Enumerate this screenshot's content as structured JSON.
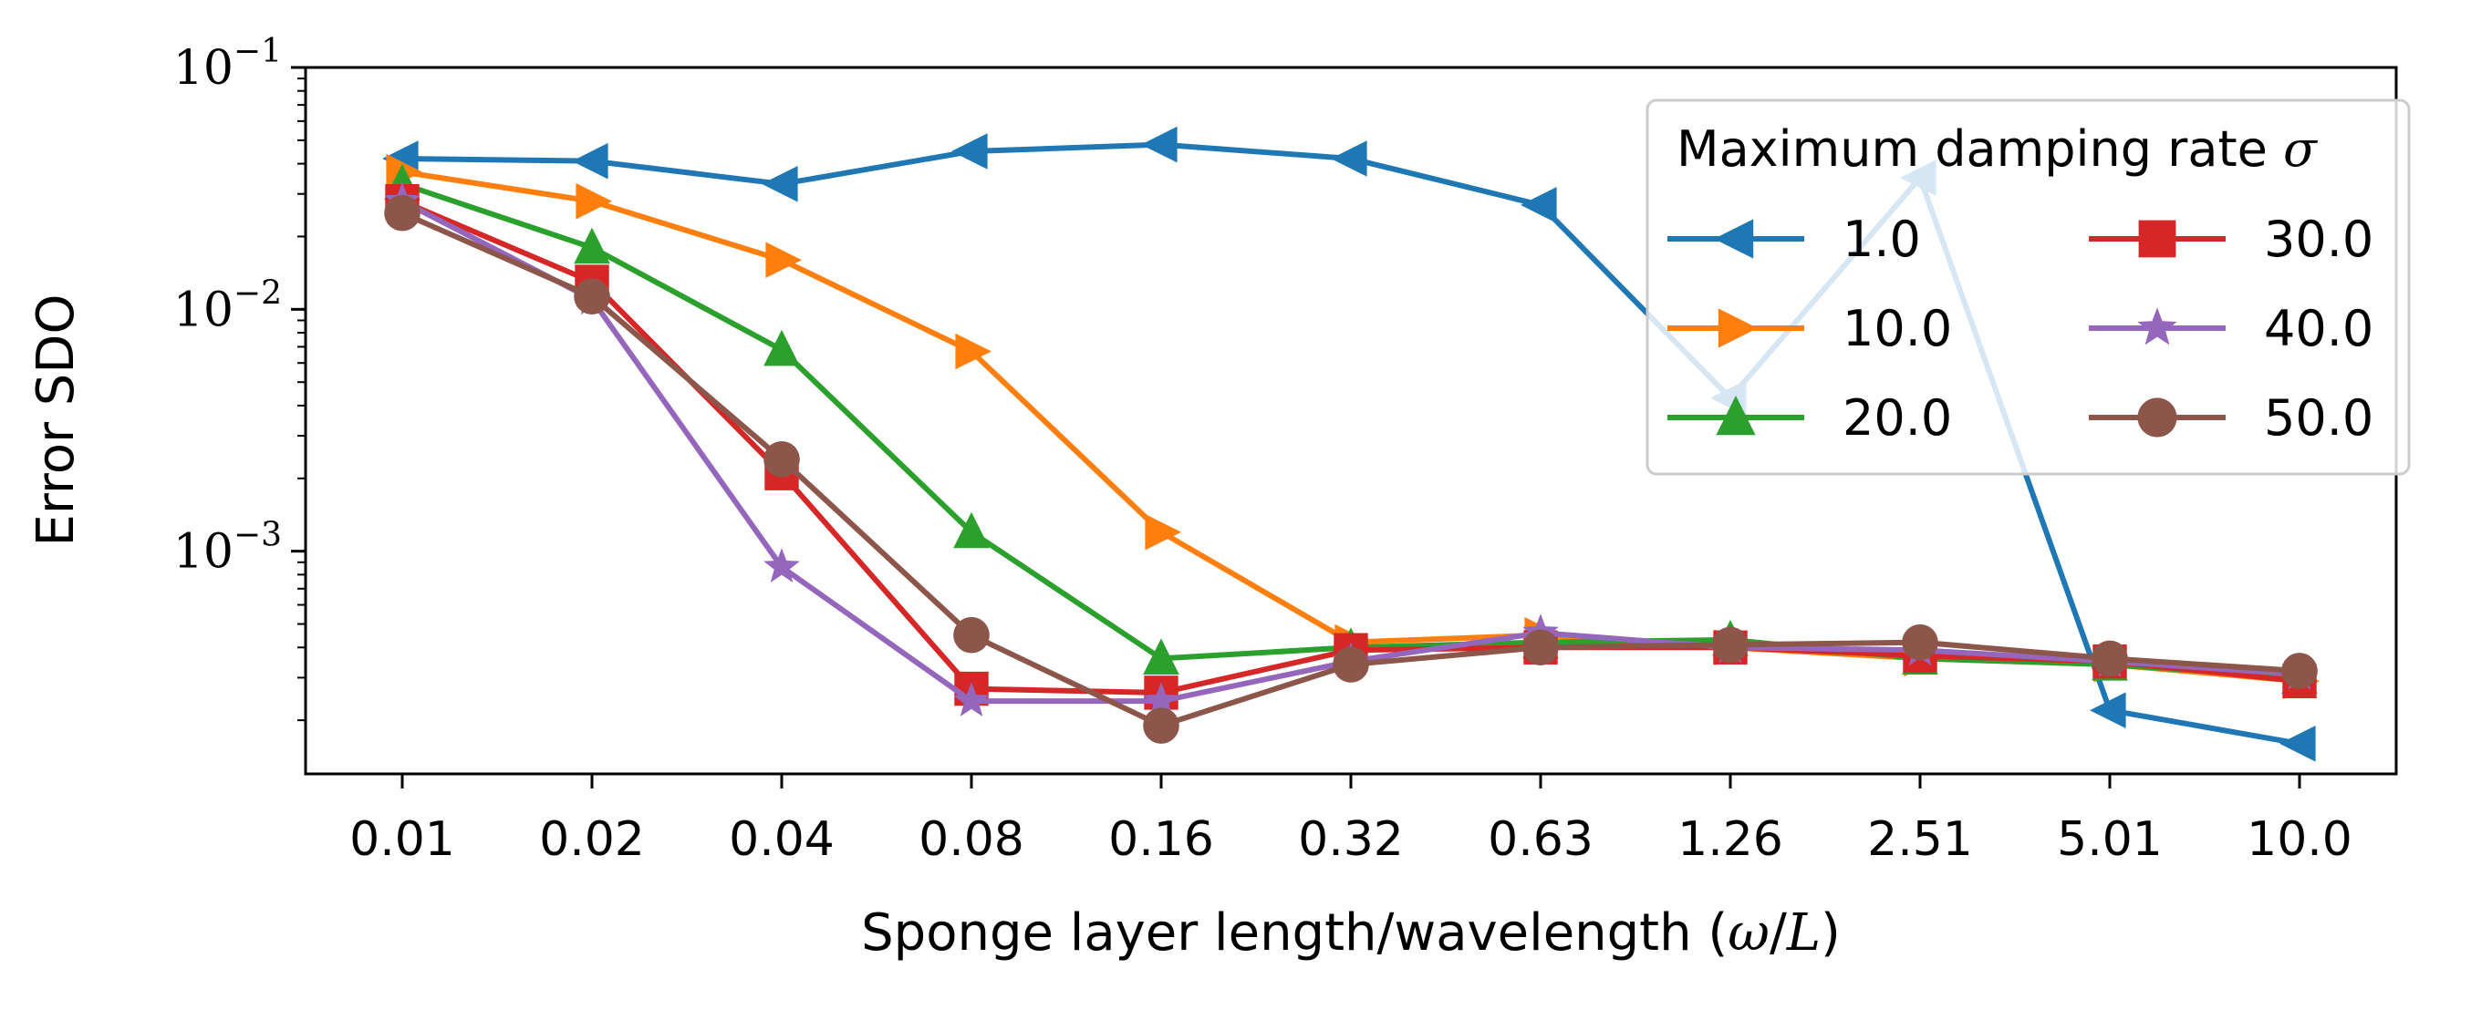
{
  "chart_data": {
    "type": "line",
    "title": "",
    "xlabel": "Sponge layer length/wavelength (ω/L)",
    "ylabel": "Error SDO",
    "yscale": "log",
    "ylim": [
      0.00012,
      0.1
    ],
    "categories": [
      "0.01",
      "0.02",
      "0.04",
      "0.08",
      "0.16",
      "0.32",
      "0.63",
      "1.26",
      "2.51",
      "5.01",
      "10.0"
    ],
    "yticks": [
      {
        "value": 0.1,
        "base": "10",
        "exp": "−1"
      },
      {
        "value": 0.01,
        "base": "10",
        "exp": "−2"
      },
      {
        "value": 0.001,
        "base": "10",
        "exp": "−3"
      }
    ],
    "legend": {
      "title": "Maximum damping rate σ",
      "position": "upper right",
      "columns": 2
    },
    "series": [
      {
        "name": "1.0",
        "color": "#1f77b4",
        "marker": "triangle-left",
        "values": [
          0.042,
          0.041,
          0.033,
          0.045,
          0.048,
          0.042,
          0.027,
          0.0043,
          0.035,
          0.00022,
          0.00016
        ]
      },
      {
        "name": "10.0",
        "color": "#ff7f0e",
        "marker": "triangle-right",
        "values": [
          0.037,
          0.028,
          0.016,
          0.0067,
          0.0012,
          0.00042,
          0.00045,
          0.0004,
          0.00036,
          0.00034,
          0.00029
        ]
      },
      {
        "name": "20.0",
        "color": "#2ca02c",
        "marker": "triangle-up",
        "values": [
          0.033,
          0.018,
          0.0068,
          0.0012,
          0.00036,
          0.0004,
          0.00042,
          0.00043,
          0.00036,
          0.00034,
          0.0003
        ]
      },
      {
        "name": "30.0",
        "color": "#d62728",
        "marker": "square",
        "values": [
          0.028,
          0.013,
          0.0021,
          0.00027,
          0.00026,
          0.00039,
          0.0004,
          0.0004,
          0.00037,
          0.00035,
          0.00029
        ]
      },
      {
        "name": "40.0",
        "color": "#9467bd",
        "marker": "star",
        "values": [
          0.028,
          0.011,
          0.00086,
          0.00024,
          0.00024,
          0.00035,
          0.00046,
          0.0004,
          0.00039,
          0.00035,
          0.00031
        ]
      },
      {
        "name": "50.0",
        "color": "#8c564b",
        "marker": "circle",
        "values": [
          0.025,
          0.0113,
          0.0024,
          0.00045,
          0.00019,
          0.00034,
          0.0004,
          0.00041,
          0.00042,
          0.00036,
          0.00032
        ]
      }
    ]
  }
}
